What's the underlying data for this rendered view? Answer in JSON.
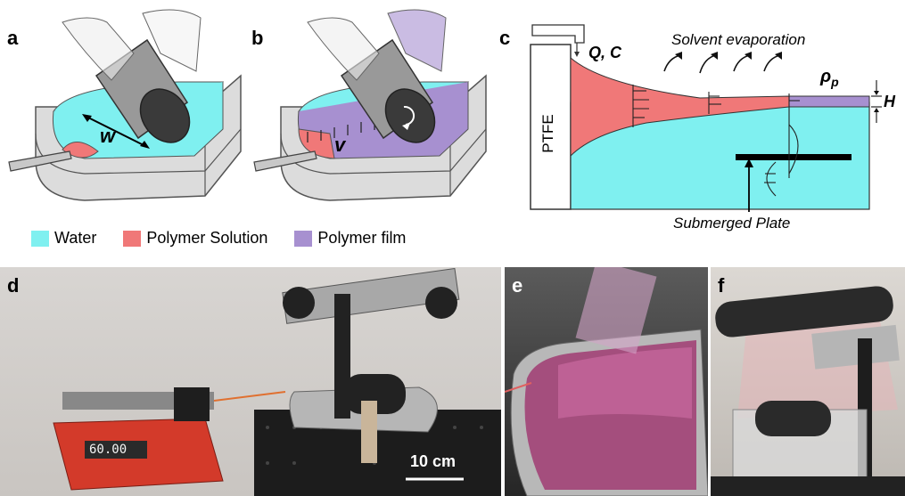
{
  "panels": {
    "a": {
      "letter": "a",
      "width_symbol": "w"
    },
    "b": {
      "letter": "b",
      "velocity_symbol": "v"
    },
    "c": {
      "letter": "c",
      "flow_label": "Q, C",
      "evaporation_label": "Solvent evaporation",
      "density_label": "ρ",
      "density_sub": "p",
      "thickness_label": "H",
      "wall_label": "PTFE",
      "plate_label": "Submerged Plate"
    },
    "d": {
      "letter": "d",
      "pump_display": "60.00",
      "scale_label": "10 cm"
    },
    "e": {
      "letter": "e"
    },
    "f": {
      "letter": "f"
    }
  },
  "legend": [
    {
      "label": "Water",
      "color": "#7ff0f0"
    },
    {
      "label": "Polymer Solution",
      "color": "#f07878"
    },
    {
      "label": "Polymer film",
      "color": "#a790d0"
    }
  ],
  "colors": {
    "water": "#7ff0f0",
    "solution": "#f07878",
    "film": "#a790d0",
    "tray": "#d9d9d9"
  }
}
